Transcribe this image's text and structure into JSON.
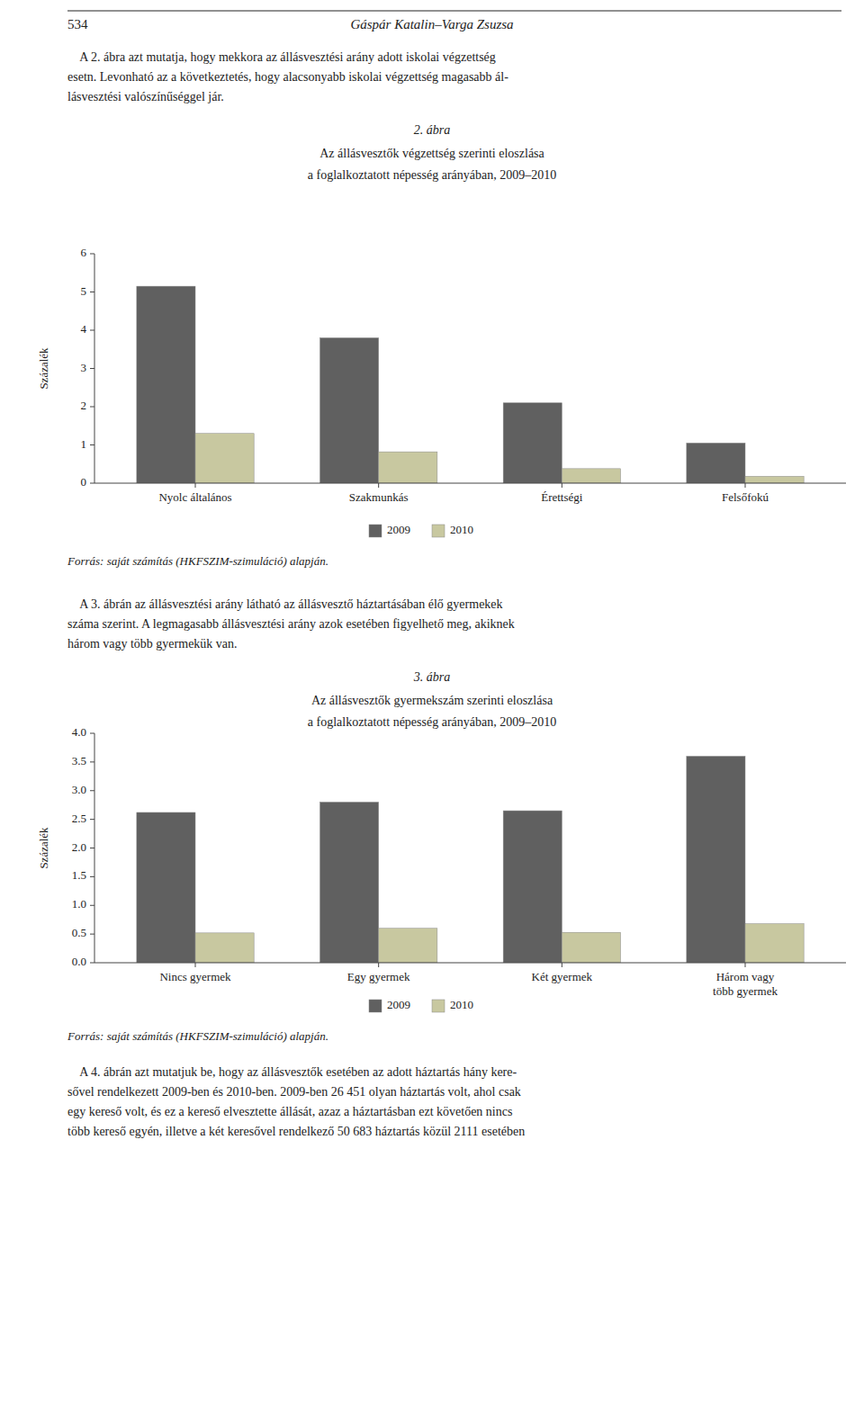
{
  "page_number": "534",
  "page_title": "Gáspár Katalin–Varga Zsuzsa",
  "intro_text": "    A 2. ábra azt mutatja, hogy mekkora az állásvesztési arány adott iskolai végzettség\nesetn. Levonható az a következtetés, hogy alacsonyabb iskolai végzettség magasabb ál-\nlásvesztési valószínűséggel jár.",
  "middle_text": "    A 3. ábrán az állásvesztési arány látható az állásvesztő háztartásában élő gyermekek\nszáma szerint. A legmagasabb állásvesztési arány azok esetében figyelhető meg, akiknek\nhárom vagy több gyermekük van.",
  "footer_text": "    A 4. ábrán azt mutatjuk be, hogy az állásvesztők esetében az adott háztartás hány kere-\nsővel rendelkezett 2009-ben és 2010-ben. 2009-ben 26 451 olyan háztartás volt, ahol csak\negy kereső volt, és ez a kereső elvesztette állását, azaz a háztartásban ezt követően nincs\ntöbb kereső egyén, illetve a két keresővel rendelkező 50 683 háztartás közül 2111 esetében",
  "chart_data": [
    {
      "type": "bar",
      "title": "2. ábra",
      "subtitle": [
        "Az állásvesztők végzettség szerinti eloszlása",
        "a foglalkoztatott népesség arányában, 2009–2010"
      ],
      "ylabel": "Százalék",
      "categories": [
        "Nyolc általános",
        "Szakmunkás",
        "Érettségi",
        "Felsőfokú"
      ],
      "series": [
        {
          "name": "2009",
          "color": "#606060",
          "values": [
            5.15,
            3.8,
            2.1,
            1.05
          ]
        },
        {
          "name": "2010",
          "color": "#c8c8a0",
          "values": [
            1.3,
            0.82,
            0.38,
            0.18
          ]
        }
      ],
      "ylim": [
        0,
        6
      ],
      "yticks": [
        0,
        1,
        2,
        3,
        4,
        5,
        6
      ],
      "grid": false,
      "legend": "bottom",
      "source": "Forrás: saját számítás (HKFSZIM-szimuláció) alapján."
    },
    {
      "type": "bar",
      "title": "3. ábra",
      "subtitle": [
        "Az állásvesztők gyermekszám szerinti eloszlása",
        "a foglalkoztatott népesség arányában, 2009–2010"
      ],
      "ylabel": "Százalék",
      "categories": [
        "Nincs gyermek",
        "Egy gyermek",
        "Két gyermek",
        "Három vagy\ntöbb gyermek"
      ],
      "series": [
        {
          "name": "2009",
          "color": "#606060",
          "values": [
            2.62,
            2.8,
            2.65,
            3.6
          ]
        },
        {
          "name": "2010",
          "color": "#c8c8a0",
          "values": [
            0.52,
            0.6,
            0.53,
            0.68
          ]
        }
      ],
      "ylim": [
        0,
        4.0
      ],
      "yticks": [
        {
          "value": 0,
          "label": "0.0"
        },
        0.5,
        {
          "value": 1,
          "label": "1.0"
        },
        1.5,
        {
          "value": 2,
          "label": "2.0"
        },
        2.5,
        {
          "value": 3,
          "label": "3.0"
        },
        3.5,
        {
          "value": 4,
          "label": "4.0"
        }
      ],
      "grid": false,
      "legend": "bottom",
      "source": "Forrás: saját számítás (HKFSZIM-szimuláció) alapján."
    }
  ]
}
